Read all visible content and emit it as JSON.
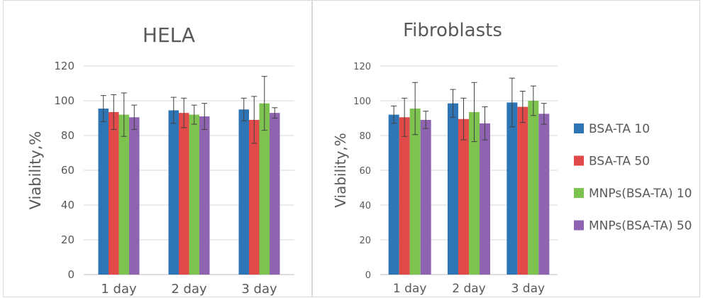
{
  "series_colors": [
    "#2e75b6",
    "#e24a4a",
    "#7ec34f",
    "#8e63b0"
  ],
  "legend": {
    "items": [
      "BSA-TA 10",
      "BSA-TA 50",
      "MNPs(BSA-TA) 10",
      "MNPs(BSA-TA) 50"
    ]
  },
  "chart_data": [
    {
      "type": "bar",
      "title": "HELA",
      "ylabel": "Viability,%",
      "xlabel": "",
      "categories": [
        "1 day",
        "2 day",
        "3 day"
      ],
      "ylim": [
        0,
        120
      ],
      "yticks": [
        "0",
        "20",
        "40",
        "60",
        "80",
        "100",
        "120"
      ],
      "grid": true,
      "series": [
        {
          "name": "BSA-TA 10",
          "values": [
            95.5,
            94.5,
            95
          ],
          "errors": [
            7.5,
            7.5,
            6.5
          ]
        },
        {
          "name": "BSA-TA 50",
          "values": [
            93.5,
            93,
            89
          ],
          "errors": [
            10,
            8.5,
            13.5
          ]
        },
        {
          "name": "MNPs(BSA-TA) 10",
          "values": [
            92,
            92,
            98.5
          ],
          "errors": [
            12.5,
            5.5,
            15.5
          ]
        },
        {
          "name": "MNPs(BSA-TA) 50",
          "values": [
            90.5,
            91,
            93
          ],
          "errors": [
            7,
            7.5,
            3
          ]
        }
      ]
    },
    {
      "type": "bar",
      "title": "Fibroblasts",
      "ylabel": "Viability,%",
      "xlabel": "",
      "categories": [
        "1 day",
        "2 day",
        "3 day"
      ],
      "ylim": [
        0,
        120
      ],
      "yticks": [
        "0",
        "20",
        "40",
        "60",
        "80",
        "100",
        "120"
      ],
      "grid": true,
      "legend_position": "right",
      "series": [
        {
          "name": "BSA-TA 10",
          "values": [
            92,
            98.5,
            99
          ],
          "errors": [
            5,
            8,
            14
          ]
        },
        {
          "name": "BSA-TA 50",
          "values": [
            90.5,
            89.5,
            96.5
          ],
          "errors": [
            11,
            12,
            9
          ]
        },
        {
          "name": "MNPs(BSA-TA) 10",
          "values": [
            95.5,
            93.5,
            100
          ],
          "errors": [
            15,
            17,
            8.5
          ]
        },
        {
          "name": "MNPs(BSA-TA) 50",
          "values": [
            89,
            87,
            92.5
          ],
          "errors": [
            5,
            9.5,
            6
          ]
        }
      ]
    }
  ]
}
